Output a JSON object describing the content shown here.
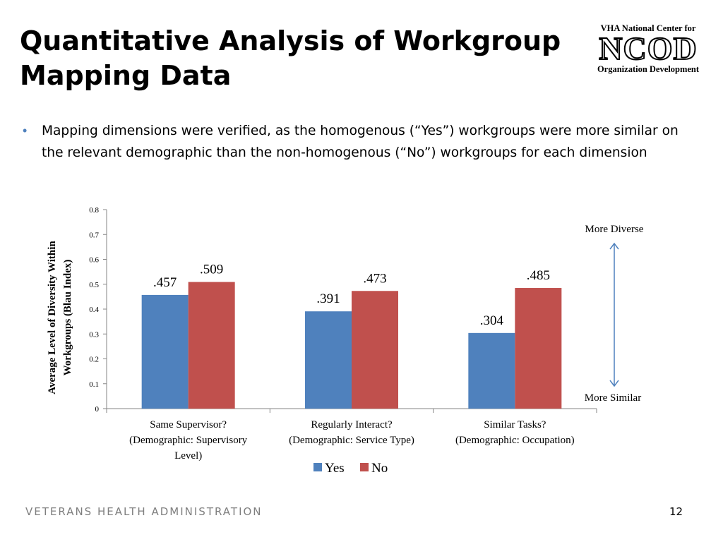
{
  "slide": {
    "title": "Quantitative Analysis of Workgroup Mapping Data",
    "bullet": "Mapping dimensions were verified, as the homogenous (“Yes”) workgroups were more similar on the relevant demographic than the non-homogenous (“No”) workgroups for each dimension",
    "footer": "VETERANS HEALTH ADMINISTRATION",
    "page_number": "12"
  },
  "logo": {
    "line1": "VHA National Center for",
    "line2": "NCOD",
    "line3": "Organization Development"
  },
  "colors": {
    "yes": "#4f81bd",
    "no": "#c0504d",
    "arrow": "#4f81bd",
    "bullet": "#4f81bd"
  },
  "chart_data": {
    "type": "bar",
    "title": "",
    "categories": [
      [
        "Same Supervisor?",
        "(Demographic: Supervisory",
        "Level)"
      ],
      [
        "Regularly Interact?",
        "(Demographic: Service Type)"
      ],
      [
        "Similar Tasks?",
        "(Demographic: Occupation)"
      ]
    ],
    "series": [
      {
        "name": "Yes",
        "values": [
          0.457,
          0.391,
          0.304
        ],
        "labels": [
          ".457",
          ".391",
          ".304"
        ]
      },
      {
        "name": "No",
        "values": [
          0.509,
          0.473,
          0.485
        ],
        "labels": [
          ".509",
          ".473",
          ".485"
        ]
      }
    ],
    "ylabel": [
      "Average Level of Diversity Within",
      "Workgroups (Blau Index)"
    ],
    "ylim": [
      0,
      0.8
    ],
    "yticks": [
      "0",
      "0.1",
      "0.2",
      "0.3",
      "0.4",
      "0.5",
      "0.6",
      "0.7",
      "0.8"
    ],
    "grid": false,
    "legend": "bottom",
    "annotations": {
      "top": "More Diverse",
      "bottom": "More Similar"
    }
  }
}
